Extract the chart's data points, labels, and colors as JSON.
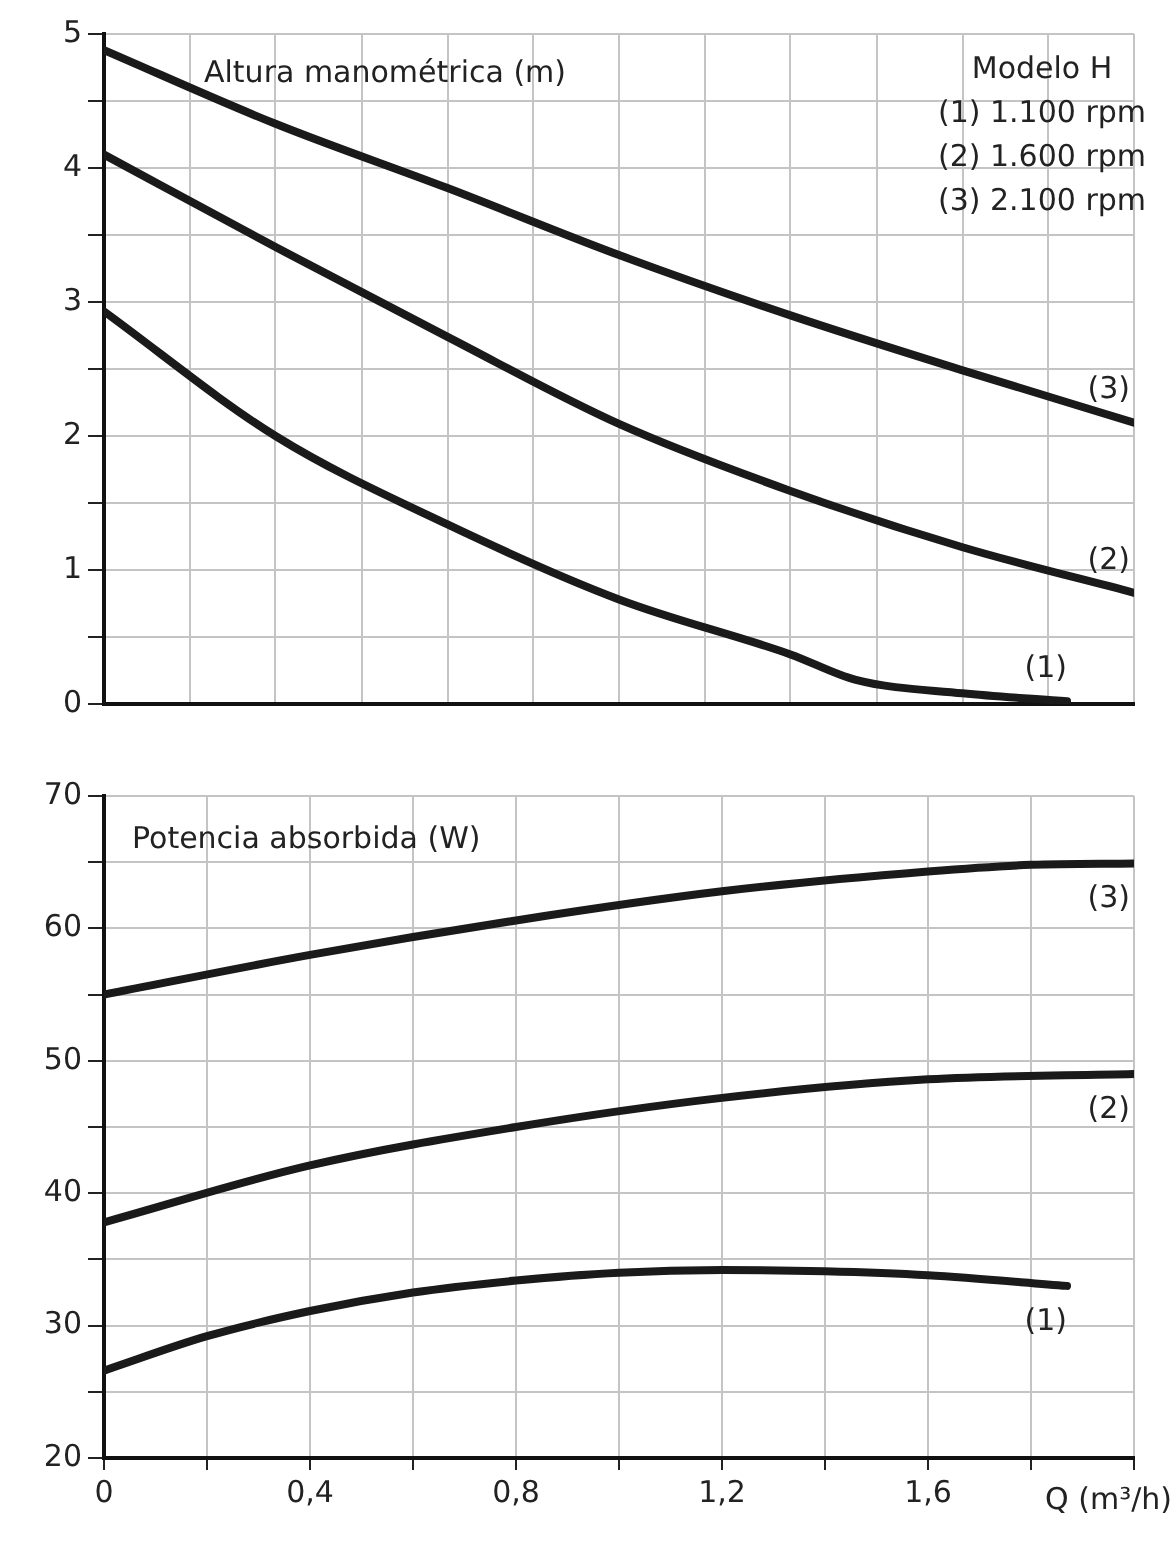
{
  "chart_data": [
    {
      "type": "line",
      "title": "Altura manométrica (m)",
      "annotations": [
        "Modelo H",
        "(1) 1.100 rpm",
        "(2) 1.600 rpm",
        "(3) 2.100 rpm"
      ],
      "tick_labels": "y",
      "grid": true,
      "legend": false,
      "marker": "none",
      "line_style": "solid",
      "xlim": [
        0,
        2
      ],
      "xticks": [
        {
          "value": 0,
          "label": null
        },
        {
          "value": 0.167,
          "label": null
        },
        {
          "value": 0.333,
          "label": null
        },
        {
          "value": 0.5,
          "label": null
        },
        {
          "value": 0.667,
          "label": null
        },
        {
          "value": 0.833,
          "label": null
        },
        {
          "value": 1,
          "label": null
        },
        {
          "value": 1.167,
          "label": null
        },
        {
          "value": 1.333,
          "label": null
        },
        {
          "value": 1.5,
          "label": null
        },
        {
          "value": 1.667,
          "label": null
        },
        {
          "value": 1.833,
          "label": null
        },
        {
          "value": 2,
          "label": null
        }
      ],
      "ylim": [
        0,
        5
      ],
      "yticks": [
        0,
        {
          "value": 0.5,
          "label": null
        },
        1,
        {
          "value": 1.5,
          "label": null
        },
        2,
        {
          "value": 2.5,
          "label": null
        },
        3,
        {
          "value": 3.5,
          "label": null
        },
        4,
        {
          "value": 4.5,
          "label": null
        },
        5
      ],
      "series": [
        {
          "name": "(1)",
          "color": "#1a1a1a",
          "x": [
            0,
            0.333,
            0.667,
            1.0,
            1.333,
            1.46,
            1.667,
            1.87
          ],
          "values": [
            2.93,
            2.0,
            1.34,
            0.78,
            0.37,
            0.18,
            0.08,
            0.02
          ]
        },
        {
          "name": "(2)",
          "color": "#1a1a1a",
          "x": [
            0,
            0.333,
            0.667,
            1.0,
            1.333,
            1.667,
            2.0
          ],
          "values": [
            4.1,
            3.41,
            2.74,
            2.09,
            1.59,
            1.17,
            0.83
          ]
        },
        {
          "name": "(3)",
          "color": "#1a1a1a",
          "x": [
            0,
            0.333,
            0.667,
            1.0,
            1.333,
            1.667,
            2.0
          ],
          "values": [
            4.88,
            4.33,
            3.85,
            3.35,
            2.9,
            2.49,
            2.1
          ]
        }
      ]
    },
    {
      "type": "line",
      "title": "Potencia absorbida (W)",
      "xlabel": "Q (m³/h)",
      "grid": true,
      "legend": false,
      "marker": "none",
      "line_style": "solid",
      "xlim": [
        0,
        2
      ],
      "xticks": [
        0,
        {
          "value": 0.2,
          "label": null
        },
        {
          "value": 0.4,
          "label": "0,4"
        },
        {
          "value": 0.6,
          "label": null
        },
        {
          "value": 0.8,
          "label": "0,8"
        },
        {
          "value": 1,
          "label": null
        },
        {
          "value": 1.2,
          "label": "1,2"
        },
        {
          "value": 1.4,
          "label": null
        },
        {
          "value": 1.6,
          "label": "1,6"
        },
        {
          "value": 1.8,
          "label": null
        },
        {
          "value": 2,
          "label": null
        }
      ],
      "ylim": [
        20,
        70
      ],
      "yticks": [
        20,
        {
          "value": 25,
          "label": null
        },
        30,
        {
          "value": 35,
          "label": null
        },
        40,
        {
          "value": 45,
          "label": null
        },
        50,
        {
          "value": 55,
          "label": null
        },
        60,
        {
          "value": 65,
          "label": null
        },
        70
      ],
      "series": [
        {
          "name": "(1)",
          "color": "#1a1a1a",
          "x": [
            0,
            0.2,
            0.4,
            0.6,
            0.8,
            1.0,
            1.2,
            1.4,
            1.6,
            1.87
          ],
          "values": [
            26.6,
            29.2,
            31.1,
            32.5,
            33.4,
            34.0,
            34.2,
            34.1,
            33.8,
            33.0
          ]
        },
        {
          "name": "(2)",
          "color": "#1a1a1a",
          "x": [
            0,
            0.4,
            0.8,
            1.2,
            1.6,
            2.0
          ],
          "values": [
            37.8,
            42.1,
            45.0,
            47.2,
            48.6,
            49.0
          ]
        },
        {
          "name": "(3)",
          "color": "#1a1a1a",
          "x": [
            0,
            0.4,
            0.8,
            1.2,
            1.6,
            1.8,
            2.0
          ],
          "values": [
            55.0,
            58.0,
            60.6,
            62.8,
            64.3,
            64.8,
            64.9
          ]
        }
      ]
    }
  ]
}
